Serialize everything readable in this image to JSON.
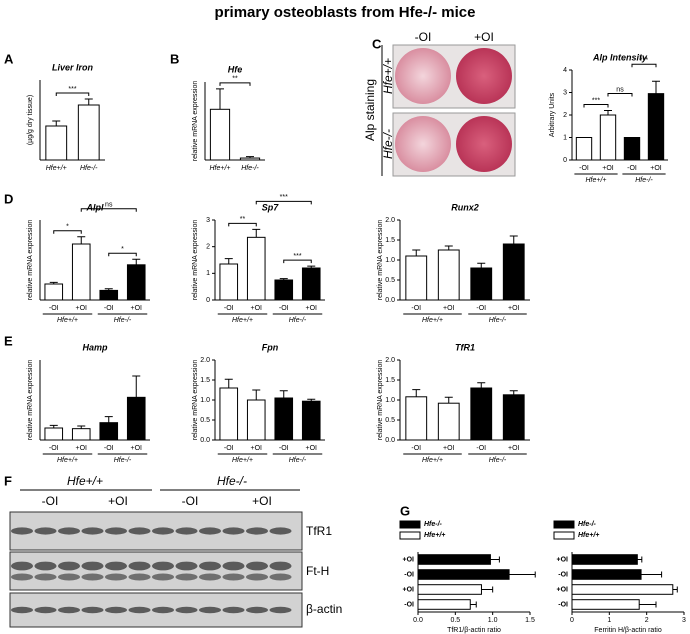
{
  "title": "primary osteoblasts from Hfe-/- mice",
  "panels": [
    "A",
    "B",
    "C",
    "D",
    "E",
    "F",
    "G"
  ],
  "staining": {
    "cols": [
      "-OI",
      "+OI"
    ],
    "label": "Alp staining",
    "rows": [
      "Hfe+/+",
      "Hfe-/-"
    ]
  },
  "blot": {
    "groups": [
      "Hfe+/+",
      "Hfe-/-"
    ],
    "conditions": [
      "-OI",
      "+OI",
      "-OI",
      "+OI"
    ],
    "rows": [
      "TfR1",
      "Ft-H",
      "β-actin"
    ]
  },
  "chart_data": [
    {
      "type": "bar",
      "title": "Liver Iron",
      "ylabel": "(µg/g dry tissue)",
      "categories": [
        "Hfe+/+",
        "Hfe-/-"
      ],
      "values": [
        340,
        550
      ],
      "errors": [
        50,
        60
      ],
      "colors": [
        "#ffffff",
        "#ffffff"
      ],
      "ylim": [
        0,
        800
      ],
      "annotations": [
        {
          "text": "***",
          "between": [
            0,
            1
          ]
        }
      ]
    },
    {
      "type": "bar",
      "title": "Hfe",
      "ylabel": "relative mRNA expression",
      "categories": [
        "Hfe+/+",
        "Hfe-/-"
      ],
      "values": [
        5.2,
        0.2
      ],
      "errors": [
        2.1,
        0.15
      ],
      "colors": [
        "#ffffff",
        "#ffffff"
      ],
      "ylim": [
        0,
        8
      ],
      "annotations": [
        {
          "text": "**",
          "between": [
            0,
            1
          ]
        }
      ]
    },
    {
      "type": "bar",
      "title": "Alp Intensity",
      "ylabel": "Arbitrary Units",
      "categories": [
        "-OI",
        "+OI",
        "-OI",
        "+OI"
      ],
      "groups": [
        "Hfe+/+",
        "Hfe-/-"
      ],
      "values": [
        1,
        2.0,
        1,
        2.95
      ],
      "errors": [
        0,
        0.2,
        0,
        0.55
      ],
      "colors": [
        "#ffffff",
        "#ffffff",
        "#000000",
        "#000000"
      ],
      "ylim": [
        0,
        4
      ],
      "yticks": [
        0,
        1,
        2,
        3,
        4
      ],
      "annotations": [
        {
          "text": "***",
          "between": [
            0,
            1
          ]
        },
        {
          "text": "ns",
          "between": [
            1,
            2
          ]
        },
        {
          "text": "***",
          "between": [
            2,
            3
          ]
        }
      ]
    },
    {
      "type": "bar",
      "title": "Alpl",
      "ylabel": "relative mRNA expression",
      "categories": [
        "-OI",
        "+OI",
        "-OI",
        "+OI"
      ],
      "groups": [
        "Hfe+/+",
        "Hfe-/-"
      ],
      "values": [
        1.0,
        3.5,
        0.6,
        2.2
      ],
      "errors": [
        0.1,
        0.45,
        0.1,
        0.35
      ],
      "colors": [
        "#ffffff",
        "#ffffff",
        "#000000",
        "#000000"
      ],
      "ylim": [
        0,
        5
      ],
      "annotations": [
        {
          "text": "*",
          "between": [
            0,
            1
          ]
        },
        {
          "text": "*",
          "between": [
            2,
            3
          ]
        },
        {
          "text": "ns",
          "between": [
            1,
            3
          ]
        }
      ]
    },
    {
      "type": "bar",
      "title": "Sp7",
      "ylabel": "relative mRNA expression",
      "categories": [
        "-OI",
        "+OI",
        "-OI",
        "+OI"
      ],
      "groups": [
        "Hfe+/+",
        "Hfe-/-"
      ],
      "values": [
        1.35,
        2.35,
        0.75,
        1.2
      ],
      "errors": [
        0.2,
        0.3,
        0.05,
        0.07
      ],
      "colors": [
        "#ffffff",
        "#ffffff",
        "#000000",
        "#000000"
      ],
      "ylim": [
        0,
        3
      ],
      "yticks": [
        0,
        1,
        2,
        3
      ],
      "annotations": [
        {
          "text": "**",
          "between": [
            0,
            1
          ]
        },
        {
          "text": "***",
          "between": [
            2,
            3
          ]
        },
        {
          "text": "***",
          "between": [
            1,
            3
          ]
        }
      ]
    },
    {
      "type": "bar",
      "title": "Runx2",
      "ylabel": "relative mRNA expression",
      "categories": [
        "-OI",
        "+OI",
        "-OI",
        "+OI"
      ],
      "groups": [
        "Hfe+/+",
        "Hfe-/-"
      ],
      "values": [
        1.1,
        1.25,
        0.8,
        1.4
      ],
      "errors": [
        0.15,
        0.1,
        0.12,
        0.2
      ],
      "colors": [
        "#ffffff",
        "#ffffff",
        "#000000",
        "#000000"
      ],
      "ylim": [
        0,
        2
      ],
      "yticks": [
        {
          "value": 0,
          "label": "0.0"
        },
        {
          "value": 0.5,
          "label": "0.5"
        },
        {
          "value": 1,
          "label": "1.0"
        },
        {
          "value": 1.5,
          "label": "1.5"
        },
        {
          "value": 2,
          "label": "2.0"
        }
      ]
    },
    {
      "type": "bar",
      "title": "Hamp",
      "ylabel": "relative mRNA expression",
      "categories": [
        "-OI",
        "+OI",
        "-OI",
        "+OI"
      ],
      "groups": [
        "Hfe+/+",
        "Hfe-/-"
      ],
      "values": [
        0.9,
        0.85,
        1.3,
        3.2
      ],
      "errors": [
        0.2,
        0.2,
        0.45,
        1.6
      ],
      "colors": [
        "#ffffff",
        "#ffffff",
        "#000000",
        "#000000"
      ],
      "ylim": [
        0,
        6
      ]
    },
    {
      "type": "bar",
      "title": "Fpn",
      "ylabel": "relative mRNA expression",
      "categories": [
        "-OI",
        "+OI",
        "-OI",
        "+OI"
      ],
      "groups": [
        "Hfe+/+",
        "Hfe-/-"
      ],
      "values": [
        1.3,
        1.0,
        1.05,
        0.97
      ],
      "errors": [
        0.22,
        0.25,
        0.18,
        0.05
      ],
      "colors": [
        "#ffffff",
        "#ffffff",
        "#000000",
        "#000000"
      ],
      "ylim": [
        0,
        2
      ],
      "yticks": [
        {
          "value": 0,
          "label": "0.0"
        },
        {
          "value": 0.5,
          "label": "0.5"
        },
        {
          "value": 1,
          "label": "1.0"
        },
        {
          "value": 1.5,
          "label": "1.5"
        },
        {
          "value": 2,
          "label": "2.0"
        }
      ]
    },
    {
      "type": "bar",
      "title": "TfR1",
      "ylabel": "relative mRNA expression",
      "categories": [
        "-OI",
        "+OI",
        "-OI",
        "+OI"
      ],
      "groups": [
        "Hfe+/+",
        "Hfe-/-"
      ],
      "values": [
        1.08,
        0.92,
        1.3,
        1.13
      ],
      "errors": [
        0.18,
        0.15,
        0.13,
        0.1
      ],
      "colors": [
        "#ffffff",
        "#ffffff",
        "#000000",
        "#000000"
      ],
      "ylim": [
        0,
        2
      ],
      "yticks": [
        {
          "value": 0,
          "label": "0.0"
        },
        {
          "value": 0.5,
          "label": "0.5"
        },
        {
          "value": 1,
          "label": "1.0"
        },
        {
          "value": 1.5,
          "label": "1.5"
        },
        {
          "value": 2,
          "label": "2.0"
        }
      ]
    },
    {
      "type": "hbar",
      "xlabel": "TfR1/β-actin ratio",
      "categories": [
        "+OI",
        "-OI",
        "+OI",
        "-OI"
      ],
      "values": [
        0.97,
        1.22,
        0.85,
        0.7
      ],
      "errors": [
        0.12,
        0.35,
        0.15,
        0.08
      ],
      "colors": [
        "#000000",
        "#000000",
        "#ffffff",
        "#ffffff"
      ],
      "xlim": [
        0,
        1.5
      ],
      "xticks": [
        {
          "value": 0,
          "label": "0.0"
        },
        {
          "value": 0.5,
          "label": "0.5"
        },
        {
          "value": 1,
          "label": "1.0"
        },
        {
          "value": 1.5,
          "label": "1.5"
        }
      ],
      "legend": [
        {
          "name": "Hfe-/-",
          "color": "#000000"
        },
        {
          "name": "Hfe+/+",
          "color": "#ffffff"
        }
      ]
    },
    {
      "type": "hbar",
      "xlabel": "Ferritin H/β-actin ratio",
      "categories": [
        "+OI",
        "-OI",
        "+OI",
        "-OI"
      ],
      "values": [
        1.75,
        1.85,
        2.7,
        1.8
      ],
      "errors": [
        0.12,
        0.55,
        0.12,
        0.45
      ],
      "colors": [
        "#000000",
        "#000000",
        "#ffffff",
        "#ffffff"
      ],
      "xlim": [
        0,
        3
      ],
      "xticks": [
        0,
        1,
        2,
        3
      ],
      "legend": [
        {
          "name": "Hfe-/-",
          "color": "#000000"
        },
        {
          "name": "Hfe+/+",
          "color": "#ffffff"
        }
      ]
    }
  ]
}
